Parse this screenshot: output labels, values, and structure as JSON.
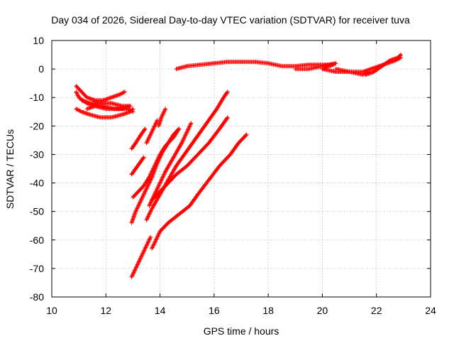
{
  "chart_data": {
    "type": "scatter",
    "title": "Day 034 of 2026, Sidereal Day-to-day VTEC variation (SDTVAR) for receiver tuva",
    "xlabel": "GPS time / hours",
    "ylabel": "SDTVAR / TECUs",
    "xlim": [
      10,
      24
    ],
    "ylim": [
      -80,
      10
    ],
    "xticks": [
      10,
      12,
      14,
      16,
      18,
      20,
      22,
      24
    ],
    "yticks": [
      -80,
      -70,
      -60,
      -50,
      -40,
      -30,
      -20,
      -10,
      0,
      10
    ],
    "grid": true,
    "marker": "+",
    "series_color": "#ff0000",
    "series": [
      {
        "points": [
          [
            10.9,
            -6
          ],
          [
            11.1,
            -8
          ],
          [
            11.3,
            -10
          ],
          [
            11.6,
            -11
          ],
          [
            11.9,
            -11
          ],
          [
            12.2,
            -10
          ],
          [
            12.5,
            -9
          ],
          [
            12.7,
            -8
          ]
        ]
      },
      {
        "points": [
          [
            10.9,
            -8
          ],
          [
            11.0,
            -10
          ],
          [
            11.3,
            -12
          ],
          [
            11.6,
            -13
          ],
          [
            12.0,
            -14
          ],
          [
            12.4,
            -14
          ],
          [
            12.8,
            -14
          ],
          [
            13.0,
            -15
          ]
        ]
      },
      {
        "points": [
          [
            10.9,
            -14
          ],
          [
            11.1,
            -15
          ],
          [
            11.4,
            -16
          ],
          [
            11.8,
            -17
          ],
          [
            12.2,
            -17
          ],
          [
            12.6,
            -16
          ],
          [
            12.9,
            -15
          ],
          [
            13.0,
            -14
          ]
        ]
      },
      {
        "points": [
          [
            11.3,
            -14
          ],
          [
            11.6,
            -13
          ],
          [
            11.9,
            -13
          ],
          [
            12.3,
            -14
          ],
          [
            12.6,
            -14
          ],
          [
            12.9,
            -13
          ]
        ]
      },
      {
        "points": [
          [
            11.1,
            -11
          ],
          [
            11.4,
            -12
          ],
          [
            11.8,
            -12
          ],
          [
            12.2,
            -12
          ],
          [
            12.6,
            -13
          ],
          [
            12.9,
            -13
          ]
        ]
      },
      {
        "points": [
          [
            12.95,
            -28
          ],
          [
            13.1,
            -26
          ],
          [
            13.3,
            -23
          ],
          [
            13.45,
            -21
          ]
        ]
      },
      {
        "points": [
          [
            13.5,
            -26
          ],
          [
            13.65,
            -23
          ],
          [
            13.8,
            -20
          ],
          [
            13.9,
            -18
          ]
        ]
      },
      {
        "points": [
          [
            12.95,
            -37
          ],
          [
            13.1,
            -35
          ],
          [
            13.25,
            -33
          ],
          [
            13.4,
            -31
          ]
        ]
      },
      {
        "points": [
          [
            13.95,
            -20
          ],
          [
            14.05,
            -17
          ],
          [
            14.15,
            -15
          ],
          [
            14.2,
            -14
          ]
        ]
      },
      {
        "points": [
          [
            12.95,
            -54
          ],
          [
            13.1,
            -50
          ],
          [
            13.3,
            -46
          ],
          [
            13.5,
            -42
          ],
          [
            13.7,
            -38
          ],
          [
            13.9,
            -33
          ],
          [
            14.1,
            -29
          ],
          [
            14.3,
            -26
          ],
          [
            14.5,
            -23
          ],
          [
            14.7,
            -21
          ]
        ]
      },
      {
        "points": [
          [
            13.0,
            -45
          ],
          [
            13.2,
            -43
          ],
          [
            13.4,
            -41
          ],
          [
            13.6,
            -38
          ],
          [
            13.8,
            -34
          ],
          [
            14.0,
            -30
          ],
          [
            14.2,
            -27
          ],
          [
            14.5,
            -24
          ],
          [
            14.7,
            -21
          ]
        ]
      },
      {
        "points": [
          [
            13.6,
            -48
          ],
          [
            13.8,
            -44
          ],
          [
            14.0,
            -40
          ],
          [
            14.2,
            -36
          ],
          [
            14.5,
            -31
          ],
          [
            14.8,
            -26
          ],
          [
            15.0,
            -22
          ],
          [
            15.15,
            -19
          ]
        ]
      },
      {
        "points": [
          [
            13.5,
            -53
          ],
          [
            13.7,
            -49
          ],
          [
            14.0,
            -44
          ],
          [
            14.3,
            -39
          ],
          [
            14.6,
            -34
          ],
          [
            14.9,
            -30
          ],
          [
            15.2,
            -26
          ],
          [
            15.5,
            -22
          ],
          [
            15.8,
            -18
          ],
          [
            16.1,
            -14
          ],
          [
            16.35,
            -10
          ],
          [
            16.5,
            -8
          ]
        ]
      },
      {
        "points": [
          [
            13.7,
            -46
          ],
          [
            14.0,
            -43
          ],
          [
            14.3,
            -40
          ],
          [
            14.6,
            -37
          ],
          [
            15.0,
            -34
          ],
          [
            15.4,
            -30
          ],
          [
            15.8,
            -26
          ],
          [
            16.2,
            -21
          ],
          [
            16.5,
            -17
          ]
        ]
      },
      {
        "points": [
          [
            12.95,
            -73
          ],
          [
            13.1,
            -70
          ],
          [
            13.25,
            -67
          ],
          [
            13.4,
            -64
          ],
          [
            13.55,
            -61
          ],
          [
            13.65,
            -59
          ]
        ]
      },
      {
        "points": [
          [
            13.7,
            -63
          ],
          [
            13.85,
            -60
          ],
          [
            14.0,
            -57
          ],
          [
            14.3,
            -54
          ],
          [
            14.7,
            -51
          ],
          [
            15.1,
            -48
          ],
          [
            15.4,
            -44
          ],
          [
            15.8,
            -39
          ],
          [
            16.2,
            -34
          ],
          [
            16.6,
            -30
          ],
          [
            16.9,
            -26
          ],
          [
            17.2,
            -23
          ]
        ]
      },
      {
        "points": [
          [
            14.6,
            0
          ],
          [
            15.0,
            1
          ],
          [
            15.5,
            1.5
          ],
          [
            16.0,
            2
          ],
          [
            16.5,
            2.5
          ],
          [
            17.0,
            2.5
          ],
          [
            17.5,
            2.5
          ],
          [
            18.0,
            2
          ],
          [
            18.5,
            1
          ],
          [
            19.0,
            1
          ],
          [
            19.5,
            1.5
          ],
          [
            20.0,
            1.5
          ],
          [
            20.4,
            1.5
          ]
        ]
      },
      {
        "points": [
          [
            19.0,
            0
          ],
          [
            19.5,
            0
          ],
          [
            20.0,
            1
          ],
          [
            20.5,
            2
          ],
          [
            20.0,
            0
          ],
          [
            20.5,
            -1
          ],
          [
            21.0,
            -1
          ],
          [
            21.5,
            -2
          ],
          [
            21.7,
            -1
          ]
        ]
      },
      {
        "points": [
          [
            20.5,
            0
          ],
          [
            21.0,
            -1
          ],
          [
            21.5,
            -1
          ],
          [
            21.8,
            0
          ],
          [
            22.1,
            1
          ],
          [
            22.4,
            2
          ],
          [
            22.7,
            3
          ],
          [
            22.9,
            4
          ]
        ]
      },
      {
        "points": [
          [
            21.6,
            -2
          ],
          [
            21.9,
            -1
          ],
          [
            22.2,
            1
          ],
          [
            22.5,
            3
          ],
          [
            22.8,
            4
          ],
          [
            22.9,
            5
          ]
        ]
      }
    ]
  }
}
